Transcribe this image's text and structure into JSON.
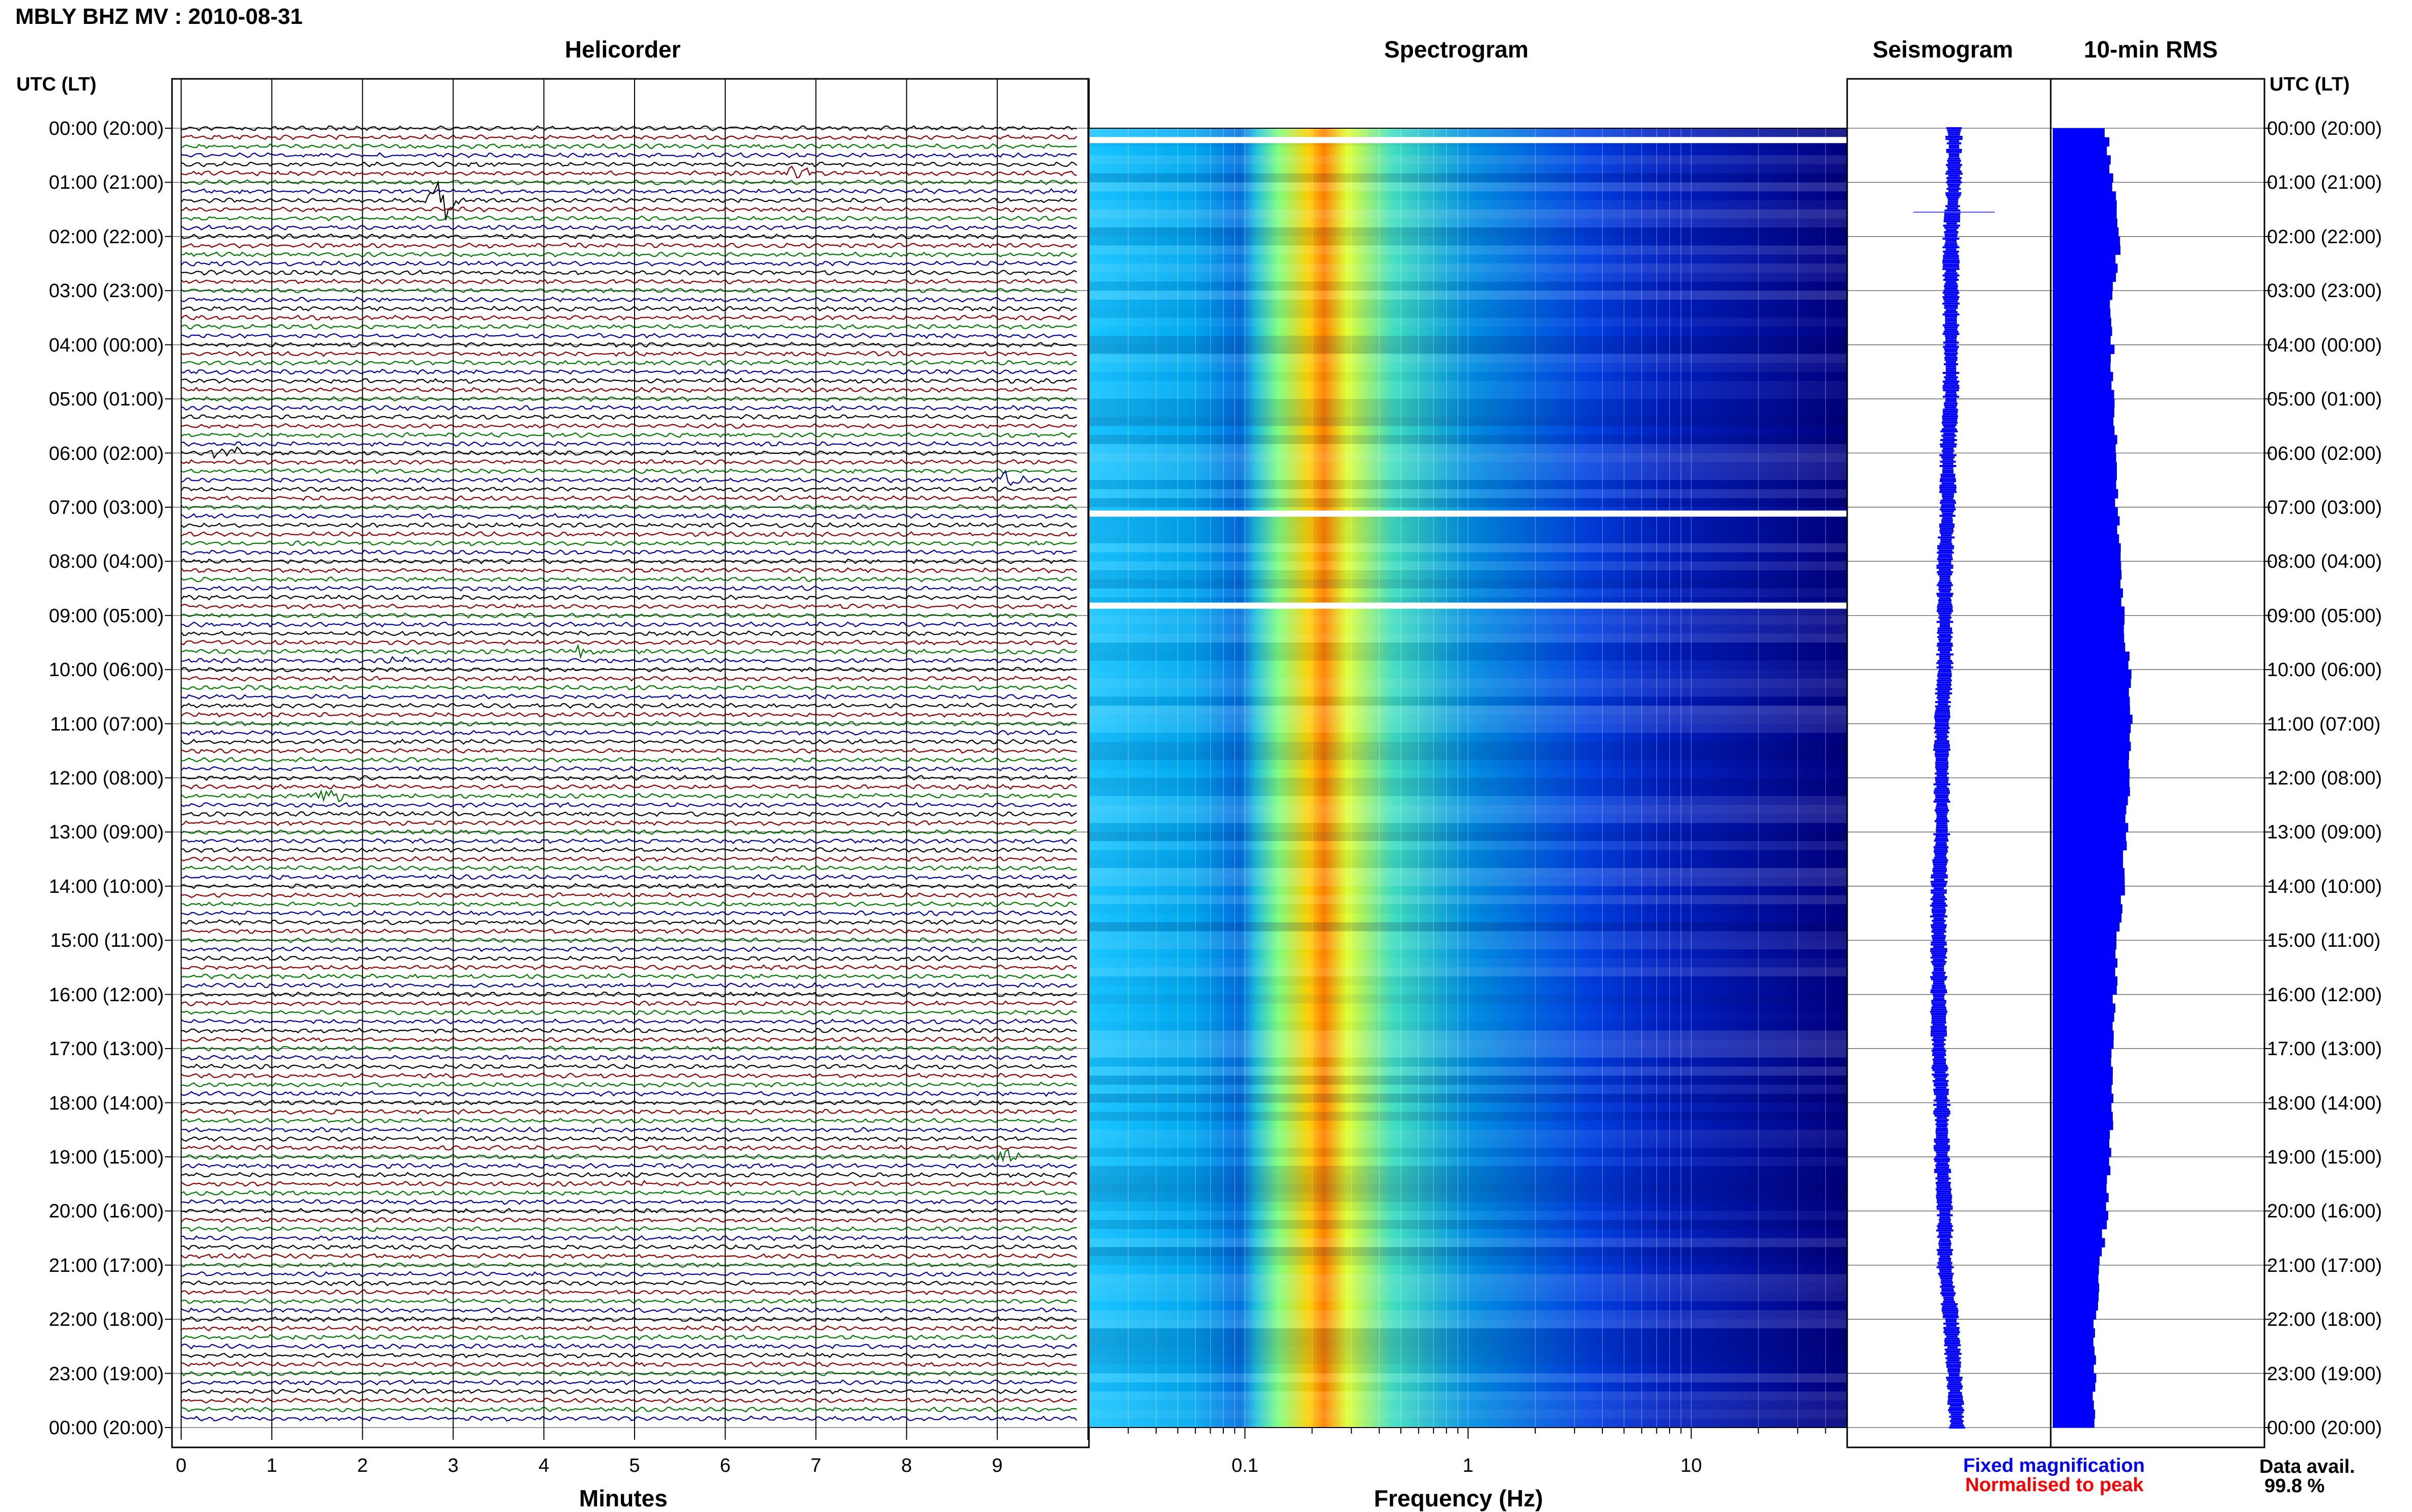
{
  "title": "MBLY BHZ MV : 2010-08-31",
  "panels": {
    "helicorder": "Helicorder",
    "spectrogram": "Spectrogram",
    "seismogram": "Seismogram",
    "rms": "10-min RMS"
  },
  "axis_header_left": "UTC (LT)",
  "axis_header_right": "UTC (LT)",
  "xlabel_helicorder": "Minutes",
  "xlabel_spectrogram": "Frequency (Hz)",
  "legend": {
    "fixed": "Fixed magnification",
    "normalised": "Normalised to peak",
    "fixed_color": "#0000ff",
    "normalised_color": "#ff0000"
  },
  "data_avail_label": "Data avail.",
  "data_avail_value": "99.8 %",
  "colors": {
    "trace_colors": [
      "#000000",
      "#8b0000",
      "#007700",
      "#000099"
    ],
    "bar_fill": "#0000ff",
    "spectrogram_cold": "#00007f",
    "spectrogram_hot": "#ff2000"
  },
  "chart_data": [
    {
      "type": "line",
      "name": "helicorder",
      "title": "Helicorder",
      "xlabel": "Minutes",
      "xlim": [
        0,
        10
      ],
      "x_ticks": [
        "0",
        "1",
        "2",
        "3",
        "4",
        "5",
        "6",
        "7",
        "8",
        "9"
      ],
      "y_ticks": [
        "00:00 (20:00)",
        "01:00 (21:00)",
        "02:00 (22:00)",
        "03:00 (23:00)",
        "04:00 (00:00)",
        "05:00 (01:00)",
        "06:00 (02:00)",
        "07:00 (03:00)",
        "08:00 (04:00)",
        "09:00 (05:00)",
        "10:00 (06:00)",
        "11:00 (07:00)",
        "12:00 (08:00)",
        "13:00 (09:00)",
        "14:00 (10:00)",
        "15:00 (11:00)",
        "16:00 (12:00)",
        "17:00 (13:00)",
        "18:00 (14:00)",
        "19:00 (15:00)",
        "20:00 (16:00)",
        "21:00 (17:00)",
        "22:00 (18:00)",
        "23:00 (19:00)",
        "00:00 (20:00)"
      ],
      "rows": 144,
      "minutes_per_row": 10,
      "events": [
        {
          "row": 8,
          "minute": 2.9,
          "amplitude": 3.5
        },
        {
          "row": 5,
          "minute": 6.8,
          "amplitude": 1.2
        },
        {
          "row": 36,
          "minute": 0.5,
          "amplitude": 1.0
        },
        {
          "row": 39,
          "minute": 9.1,
          "amplitude": 1.3
        },
        {
          "row": 58,
          "minute": 4.4,
          "amplitude": 0.8
        },
        {
          "row": 59,
          "minute": 2.4,
          "amplitude": 0.8
        },
        {
          "row": 74,
          "minute": 1.6,
          "amplitude": 1.2
        },
        {
          "row": 114,
          "minute": 9.1,
          "amplitude": 1.0
        },
        {
          "row": 117,
          "minute": 5.1,
          "amplitude": 0.6
        }
      ]
    },
    {
      "type": "heatmap",
      "name": "spectrogram",
      "title": "Spectrogram",
      "xlabel": "Frequency (Hz)",
      "x_scale": "log",
      "xlim": [
        0.02,
        50
      ],
      "x_ticks": [
        "0.1",
        "1",
        "10"
      ],
      "peak_frequency_hz": 0.27,
      "gaps_utc_hours": [
        0.2,
        7.1,
        8.8
      ]
    },
    {
      "type": "line",
      "name": "seismogram",
      "title": "Seismogram",
      "values_hourly": [
        0.0,
        0.0,
        -0.05,
        -0.05,
        -0.05,
        -0.05,
        -0.1,
        -0.1,
        -0.15,
        -0.15,
        -0.15,
        -0.2,
        -0.2,
        -0.2,
        -0.25,
        -0.25,
        -0.25,
        -0.25,
        -0.2,
        -0.2,
        -0.15,
        -0.15,
        -0.05,
        0.0,
        0.05
      ]
    },
    {
      "type": "bar",
      "name": "rms",
      "title": "10-min RMS",
      "orientation": "horizontal",
      "xlim": [
        0,
        1
      ],
      "values_hourly": [
        0.25,
        0.28,
        0.32,
        0.27,
        0.28,
        0.28,
        0.3,
        0.3,
        0.32,
        0.33,
        0.36,
        0.37,
        0.36,
        0.34,
        0.33,
        0.3,
        0.29,
        0.28,
        0.28,
        0.27,
        0.25,
        0.22,
        0.2,
        0.2,
        0.19
      ]
    }
  ]
}
